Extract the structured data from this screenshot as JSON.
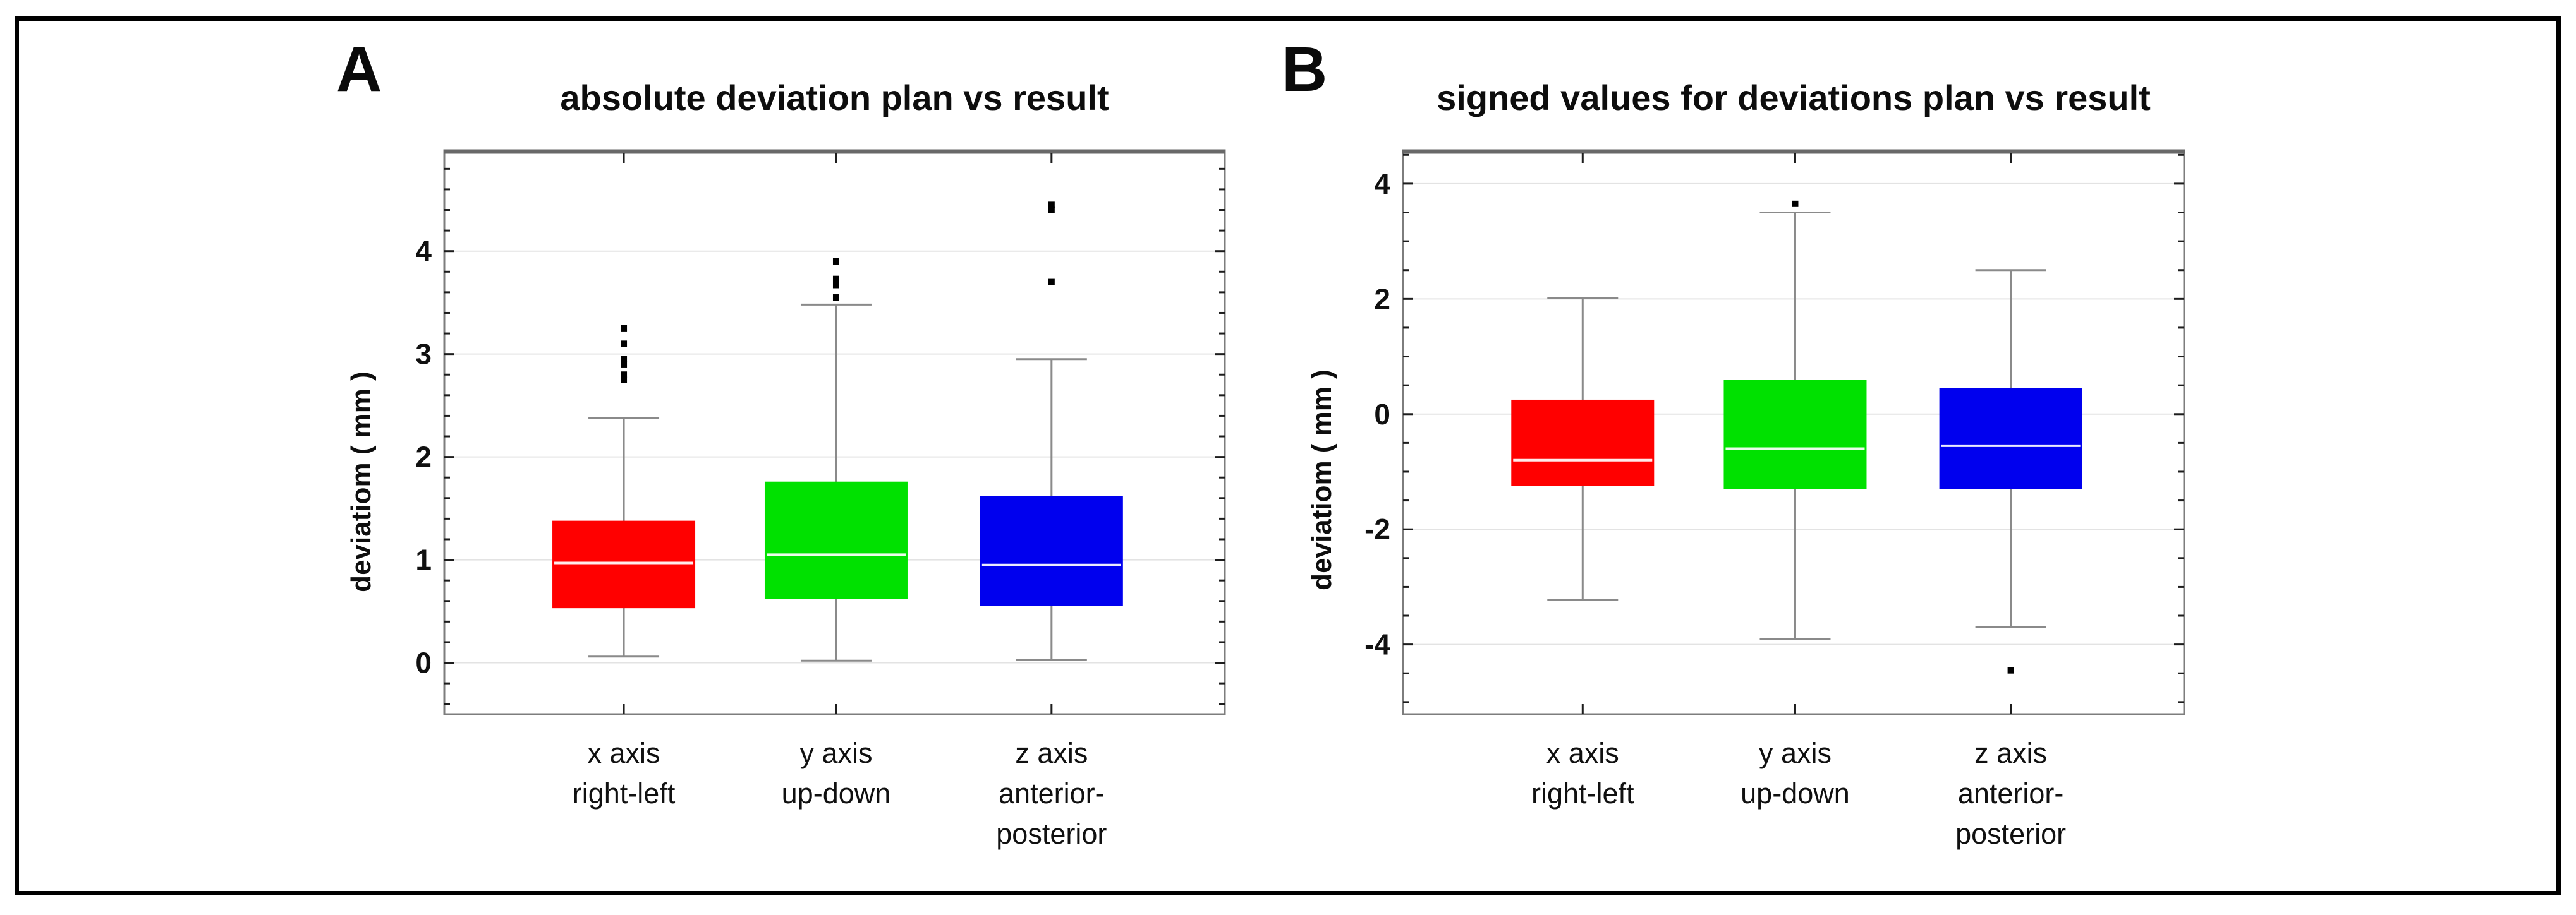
{
  "figure": {
    "background_color": "#ffffff",
    "border_color": "#000000",
    "panels": [
      {
        "letter": "A",
        "title": "absolute deviation plan vs result",
        "y_axis_label": "deviatiom ( mm )"
      },
      {
        "letter": "B",
        "title": "signed values for deviations plan vs result",
        "y_axis_label": "deviatiom ( mm )"
      }
    ]
  },
  "chart_data": [
    {
      "type": "boxplot",
      "panel": "A",
      "title": "absolute deviation plan vs result",
      "ylabel": "deviatiom ( mm )",
      "categories": [
        [
          "x axis",
          "right-left"
        ],
        [
          "y axis",
          "up-down"
        ],
        [
          "z axis",
          "anterior-",
          "posterior"
        ]
      ],
      "ylim": [
        -0.5,
        4.98
      ],
      "yticks": [
        0,
        1,
        2,
        3,
        4
      ],
      "minor_tick_step": 0.2,
      "grid": "horizontal gridlines at major ticks only",
      "series": [
        {
          "name": "x axis right-left",
          "color": "#ff0000",
          "whisker_low": 0.06,
          "q1": 0.53,
          "median": 0.97,
          "q3": 1.38,
          "whisker_high": 2.38,
          "outliers": [
            2.75,
            2.8,
            2.9,
            2.95,
            3.1,
            3.25
          ]
        },
        {
          "name": "y axis up-down",
          "color": "#00e100",
          "whisker_low": 0.02,
          "q1": 0.62,
          "median": 1.05,
          "q3": 1.76,
          "whisker_high": 3.48,
          "outliers": [
            3.55,
            3.67,
            3.73,
            3.9
          ]
        },
        {
          "name": "z axis anterior-posterior",
          "color": "#0000ee",
          "whisker_low": 0.03,
          "q1": 0.55,
          "median": 0.95,
          "q3": 1.62,
          "whisker_high": 2.95,
          "outliers": [
            3.7,
            4.4,
            4.45
          ]
        }
      ]
    },
    {
      "type": "boxplot",
      "panel": "B",
      "title": "signed values for deviations plan vs result",
      "ylabel": "deviatiom ( mm )",
      "categories": [
        [
          "x axis",
          "right-left"
        ],
        [
          "y axis",
          "up-down"
        ],
        [
          "z axis",
          "anterior-",
          "posterior"
        ]
      ],
      "ylim": [
        -5.21,
        4.58
      ],
      "yticks": [
        -4,
        -2,
        0,
        2,
        4
      ],
      "minor_tick_step": 0.5,
      "grid": "horizontal gridlines at major ticks only",
      "series": [
        {
          "name": "x axis right-left",
          "color": "#ff0000",
          "whisker_low": -3.22,
          "q1": -1.25,
          "median": -0.8,
          "q3": 0.25,
          "whisker_high": 2.02,
          "outliers": []
        },
        {
          "name": "y axis up-down",
          "color": "#00e100",
          "whisker_low": -3.9,
          "q1": -1.3,
          "median": -0.6,
          "q3": 0.6,
          "whisker_high": 3.5,
          "outliers": [
            3.65
          ]
        },
        {
          "name": "z axis anterior-posterior",
          "color": "#0000ee",
          "whisker_low": -3.7,
          "q1": -1.3,
          "median": -0.55,
          "q3": 0.45,
          "whisker_high": 2.5,
          "outliers": [
            -4.45
          ]
        }
      ]
    }
  ]
}
